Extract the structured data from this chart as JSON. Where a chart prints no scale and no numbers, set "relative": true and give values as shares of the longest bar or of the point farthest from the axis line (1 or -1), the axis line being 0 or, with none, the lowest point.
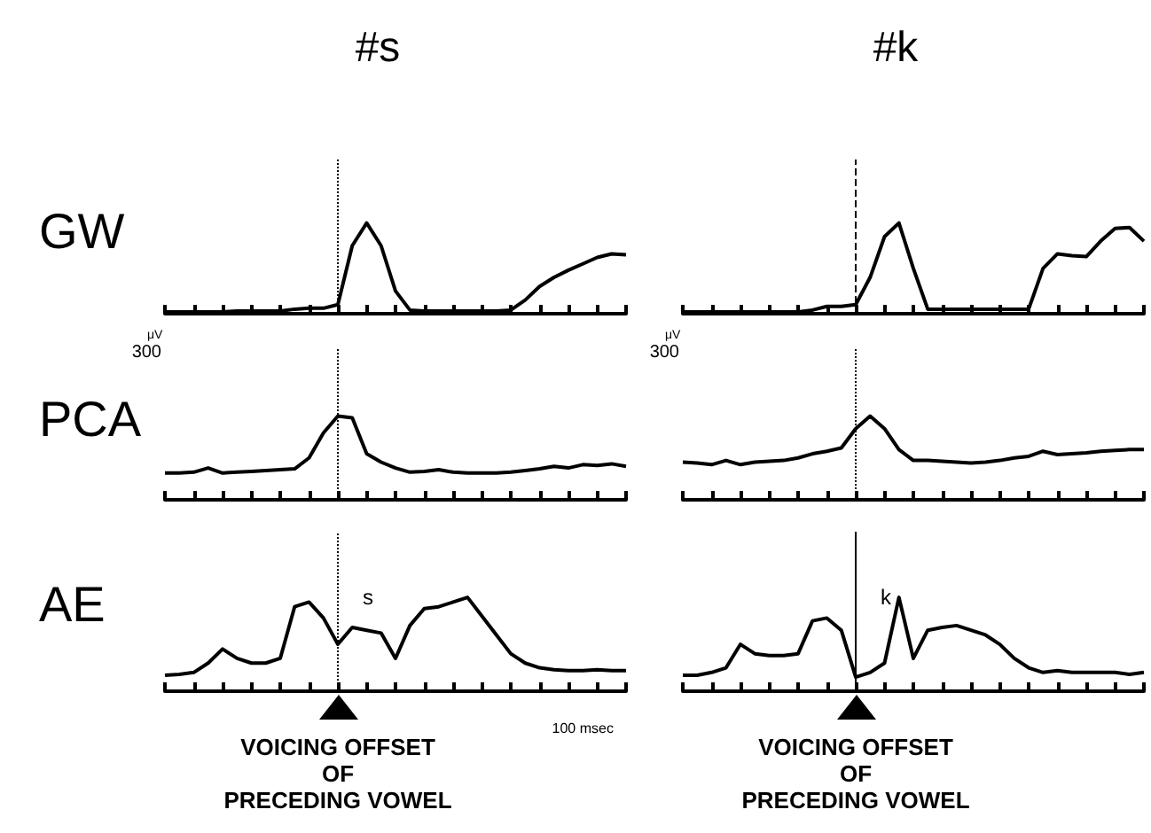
{
  "chart_data": [
    {
      "type": "line",
      "title": "#s",
      "ylabel": "GW",
      "relative": true,
      "marker": "none",
      "categories": [
        null,
        null,
        null,
        null,
        null,
        null,
        null,
        null,
        null,
        null,
        null,
        null,
        null,
        null,
        null,
        null,
        null,
        null,
        null,
        null,
        null,
        null,
        null,
        null,
        null,
        null,
        null,
        null,
        null,
        null,
        null,
        null,
        null
      ],
      "series": [
        {
          "color": "#000000",
          "values": [
            0.02,
            0.02,
            0.02,
            0.02,
            0.02,
            0.03,
            0.03,
            0.03,
            0.03,
            0.05,
            0.06,
            0.06,
            0.1,
            0.75,
            1,
            0.75,
            0.25,
            0.04,
            0.03,
            0.03,
            0.03,
            0.03,
            0.03,
            0.03,
            0.04,
            0.15,
            0.3,
            0.4,
            0.48,
            0.55,
            0.62,
            0.66,
            0.65
          ]
        }
      ]
    },
    {
      "type": "line",
      "title": "#k",
      "relative": true,
      "marker": "none",
      "categories": [
        null,
        null,
        null,
        null,
        null,
        null,
        null,
        null,
        null,
        null,
        null,
        null,
        null,
        null,
        null,
        null,
        null,
        null,
        null,
        null,
        null,
        null,
        null,
        null,
        null,
        null,
        null,
        null,
        null,
        null,
        null,
        null,
        null
      ],
      "series": [
        {
          "color": "#000000",
          "values": [
            0.02,
            0.02,
            0.02,
            0.02,
            0.02,
            0.02,
            0.02,
            0.02,
            0.02,
            0.04,
            0.08,
            0.08,
            0.1,
            0.4,
            0.85,
            1,
            0.5,
            0.05,
            0.05,
            0.05,
            0.05,
            0.05,
            0.05,
            0.05,
            0.05,
            0.5,
            0.66,
            0.64,
            0.63,
            0.8,
            0.94,
            0.95,
            0.8
          ]
        }
      ]
    },
    {
      "type": "line",
      "ylabel": "PCA",
      "relative": true,
      "marker": "none",
      "annotations": [
        "μV",
        "300"
      ],
      "categories": [
        null,
        null,
        null,
        null,
        null,
        null,
        null,
        null,
        null,
        null,
        null,
        null,
        null,
        null,
        null,
        null,
        null,
        null,
        null,
        null,
        null,
        null,
        null,
        null,
        null,
        null,
        null,
        null,
        null,
        null,
        null,
        null,
        null
      ],
      "series": [
        {
          "color": "#000000",
          "values": [
            0.32,
            0.32,
            0.33,
            0.38,
            0.32,
            0.33,
            0.34,
            0.35,
            0.36,
            0.37,
            0.5,
            0.8,
            1,
            0.98,
            0.55,
            0.45,
            0.38,
            0.33,
            0.34,
            0.36,
            0.33,
            0.32,
            0.32,
            0.32,
            0.33,
            0.35,
            0.37,
            0.4,
            0.38,
            0.42,
            0.41,
            0.43,
            0.4
          ]
        }
      ]
    },
    {
      "type": "line",
      "relative": true,
      "marker": "none",
      "annotations": [
        "μV",
        "300"
      ],
      "categories": [
        null,
        null,
        null,
        null,
        null,
        null,
        null,
        null,
        null,
        null,
        null,
        null,
        null,
        null,
        null,
        null,
        null,
        null,
        null,
        null,
        null,
        null,
        null,
        null,
        null,
        null,
        null,
        null,
        null,
        null,
        null,
        null,
        null
      ],
      "series": [
        {
          "color": "#000000",
          "values": [
            0.45,
            0.44,
            0.42,
            0.47,
            0.42,
            0.45,
            0.46,
            0.47,
            0.5,
            0.55,
            0.58,
            0.62,
            0.85,
            1,
            0.85,
            0.6,
            0.47,
            0.47,
            0.46,
            0.45,
            0.44,
            0.45,
            0.47,
            0.5,
            0.52,
            0.58,
            0.54,
            0.55,
            0.56,
            0.58,
            0.59,
            0.6,
            0.6
          ]
        }
      ]
    },
    {
      "type": "line",
      "ylabel": "AE",
      "relative": true,
      "marker": "none",
      "annotations": [
        "s",
        "VOICING OFFSET\nOF\nPRECEDING VOWEL",
        "100 msec"
      ],
      "categories": [
        null,
        null,
        null,
        null,
        null,
        null,
        null,
        null,
        null,
        null,
        null,
        null,
        null,
        null,
        null,
        null,
        null,
        null,
        null,
        null,
        null,
        null,
        null,
        null,
        null,
        null,
        null,
        null,
        null,
        null,
        null,
        null,
        null
      ],
      "series": [
        {
          "color": "#000000",
          "values": [
            0.17,
            0.18,
            0.2,
            0.3,
            0.45,
            0.35,
            0.3,
            0.3,
            0.35,
            0.9,
            0.95,
            0.78,
            0.5,
            0.68,
            0.65,
            0.62,
            0.35,
            0.7,
            0.88,
            0.9,
            0.95,
            1,
            0.8,
            0.6,
            0.4,
            0.3,
            0.25,
            0.23,
            0.22,
            0.22,
            0.23,
            0.22,
            0.22
          ]
        }
      ]
    },
    {
      "type": "line",
      "relative": true,
      "marker": "none",
      "annotations": [
        "k",
        "VOICING OFFSET\nOF\nPRECEDING VOWEL"
      ],
      "categories": [
        null,
        null,
        null,
        null,
        null,
        null,
        null,
        null,
        null,
        null,
        null,
        null,
        null,
        null,
        null,
        null,
        null,
        null,
        null,
        null,
        null,
        null,
        null,
        null,
        null,
        null,
        null,
        null,
        null,
        null,
        null,
        null,
        null
      ],
      "series": [
        {
          "color": "#000000",
          "values": [
            0.17,
            0.17,
            0.2,
            0.25,
            0.5,
            0.4,
            0.38,
            0.38,
            0.4,
            0.75,
            0.78,
            0.65,
            0.15,
            0.2,
            0.3,
            1,
            0.35,
            0.65,
            0.68,
            0.7,
            0.65,
            0.6,
            0.5,
            0.35,
            0.25,
            0.2,
            0.22,
            0.2,
            0.2,
            0.2,
            0.2,
            0.18,
            0.2
          ]
        }
      ]
    }
  ]
}
